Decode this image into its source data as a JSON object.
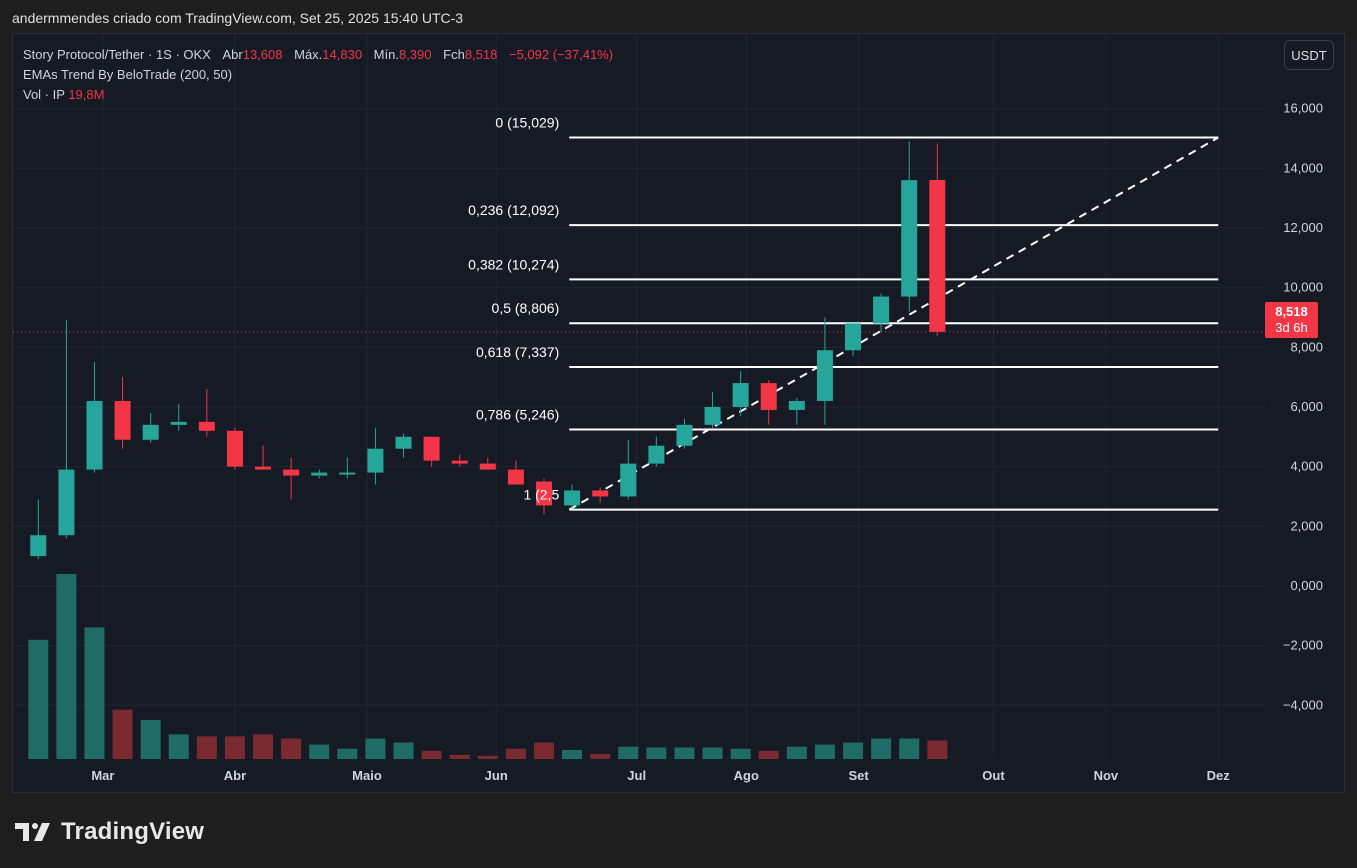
{
  "header": {
    "attribution": "andermmendes criado com TradingView.com, Set 25, 2025 15:40 UTC-3"
  },
  "legend": {
    "symbol": "Story Protocol/Tether · 1S · OKX",
    "open_label": "Abr",
    "open_value": "13,608",
    "high_label": "Máx.",
    "high_value": "14,830",
    "low_label": "Mín.",
    "low_value": "8,390",
    "close_label": "Fch",
    "close_value": "8,518",
    "change": "−5,092 (−37,41%)",
    "indicator": "EMAs Trend By BeloTrade (200, 50)",
    "vol_label": "Vol · IP",
    "vol_value": "19,8M"
  },
  "currency_button": "USDT",
  "last_price": {
    "value": "8,518",
    "countdown": "3d 6h"
  },
  "branding": {
    "name": "TradingView"
  },
  "colors": {
    "up": "#26a69a",
    "down": "#f23645",
    "background": "#161a25",
    "grid": "#232632",
    "text": "#d1d4dc",
    "fib_line": "#ffffff"
  },
  "chart_data": {
    "type": "candlestick",
    "timeframe": "1S",
    "y_axis": {
      "ticks": [
        "−4,000",
        "−2,000",
        "0,000",
        "2,000",
        "4,000",
        "6,000",
        "8,000",
        "10,000",
        "12,000",
        "14,000",
        "16,000"
      ],
      "tick_values": [
        -4,
        -2,
        0,
        2,
        4,
        6,
        8,
        10,
        12,
        14,
        16
      ],
      "ylim": [
        -5.8,
        18.5
      ]
    },
    "x_axis": {
      "ticks": [
        {
          "label": "Mar",
          "week": 2.3
        },
        {
          "label": "Abr",
          "week": 7
        },
        {
          "label": "Maio",
          "week": 11.7
        },
        {
          "label": "Jun",
          "week": 16.3
        },
        {
          "label": "Jul",
          "week": 21.3
        },
        {
          "label": "Ago",
          "week": 25.2
        },
        {
          "label": "Set",
          "week": 29.2
        },
        {
          "label": "Out",
          "week": 34
        },
        {
          "label": "Nov",
          "week": 38
        },
        {
          "label": "Dez",
          "week": 42
        }
      ],
      "xlim": [
        -0.9,
        43.7
      ]
    },
    "candles": [
      {
        "o": 1.0,
        "h": 2.9,
        "l": 0.9,
        "c": 1.7
      },
      {
        "o": 1.7,
        "h": 8.9,
        "l": 1.6,
        "c": 3.9
      },
      {
        "o": 3.9,
        "h": 7.5,
        "l": 3.8,
        "c": 6.2
      },
      {
        "o": 6.2,
        "h": 7.0,
        "l": 4.6,
        "c": 4.9
      },
      {
        "o": 4.9,
        "h": 5.8,
        "l": 4.8,
        "c": 5.4
      },
      {
        "o": 5.4,
        "h": 6.1,
        "l": 5.2,
        "c": 5.5
      },
      {
        "o": 5.5,
        "h": 6.6,
        "l": 5.0,
        "c": 5.2
      },
      {
        "o": 5.2,
        "h": 5.3,
        "l": 3.9,
        "c": 4.0
      },
      {
        "o": 4.0,
        "h": 4.7,
        "l": 3.9,
        "c": 3.9
      },
      {
        "o": 3.9,
        "h": 4.3,
        "l": 2.9,
        "c": 3.7
      },
      {
        "o": 3.7,
        "h": 3.9,
        "l": 3.6,
        "c": 3.8
      },
      {
        "o": 3.8,
        "h": 4.3,
        "l": 3.6,
        "c": 3.8
      },
      {
        "o": 3.8,
        "h": 5.3,
        "l": 3.4,
        "c": 4.6
      },
      {
        "o": 4.6,
        "h": 5.1,
        "l": 4.3,
        "c": 5.0
      },
      {
        "o": 5.0,
        "h": 5.0,
        "l": 4.0,
        "c": 4.2
      },
      {
        "o": 4.2,
        "h": 4.4,
        "l": 4.0,
        "c": 4.1
      },
      {
        "o": 4.1,
        "h": 4.3,
        "l": 3.9,
        "c": 3.9
      },
      {
        "o": 3.9,
        "h": 4.2,
        "l": 3.4,
        "c": 3.4
      },
      {
        "o": 3.5,
        "h": 3.6,
        "l": 2.4,
        "c": 2.7
      },
      {
        "o": 2.7,
        "h": 3.4,
        "l": 2.6,
        "c": 3.2
      },
      {
        "o": 3.2,
        "h": 3.3,
        "l": 2.8,
        "c": 3.0
      },
      {
        "o": 3.0,
        "h": 4.9,
        "l": 2.9,
        "c": 4.1
      },
      {
        "o": 4.1,
        "h": 5.0,
        "l": 4.0,
        "c": 4.7
      },
      {
        "o": 4.7,
        "h": 5.6,
        "l": 4.6,
        "c": 5.4
      },
      {
        "o": 5.4,
        "h": 6.5,
        "l": 5.3,
        "c": 6.0
      },
      {
        "o": 6.0,
        "h": 7.2,
        "l": 5.7,
        "c": 6.8
      },
      {
        "o": 6.8,
        "h": 6.9,
        "l": 5.4,
        "c": 5.9
      },
      {
        "o": 5.9,
        "h": 6.3,
        "l": 5.4,
        "c": 6.2
      },
      {
        "o": 6.2,
        "h": 9.0,
        "l": 5.4,
        "c": 7.9
      },
      {
        "o": 7.9,
        "h": 8.8,
        "l": 7.7,
        "c": 8.8
      },
      {
        "o": 8.8,
        "h": 9.8,
        "l": 8.5,
        "c": 9.7
      },
      {
        "o": 9.7,
        "h": 14.9,
        "l": 9.2,
        "c": 13.6
      },
      {
        "o": 13.608,
        "h": 14.83,
        "l": 8.39,
        "c": 8.518
      }
    ],
    "volume": [
      2.9,
      4.5,
      3.2,
      1.2,
      0.95,
      0.6,
      0.55,
      0.55,
      0.6,
      0.5,
      0.35,
      0.25,
      0.5,
      0.4,
      0.2,
      0.1,
      0.08,
      0.25,
      0.4,
      0.22,
      0.12,
      0.3,
      0.28,
      0.28,
      0.28,
      0.25,
      0.2,
      0.3,
      0.35,
      0.4,
      0.5,
      0.5,
      0.45
    ],
    "volume_scale_max": 4.5,
    "fibonacci": {
      "start_week": 18.9,
      "end_week": 42,
      "levels": [
        {
          "label": "0 (15,029)",
          "value": 15.029
        },
        {
          "label": "0,236 (12,092)",
          "value": 12.092
        },
        {
          "label": "0,382 (10,274)",
          "value": 10.274
        },
        {
          "label": "0,5 (8,806)",
          "value": 8.806
        },
        {
          "label": "0,618 (7,337)",
          "value": 7.337
        },
        {
          "label": "0,786 (5,246)",
          "value": 5.246
        },
        {
          "label": "1 (2,5",
          "value": 2.56
        }
      ],
      "trend_line": {
        "from": [
          18.9,
          2.56
        ],
        "to": [
          42,
          15.029
        ]
      }
    },
    "last_price_line": 8.518
  }
}
